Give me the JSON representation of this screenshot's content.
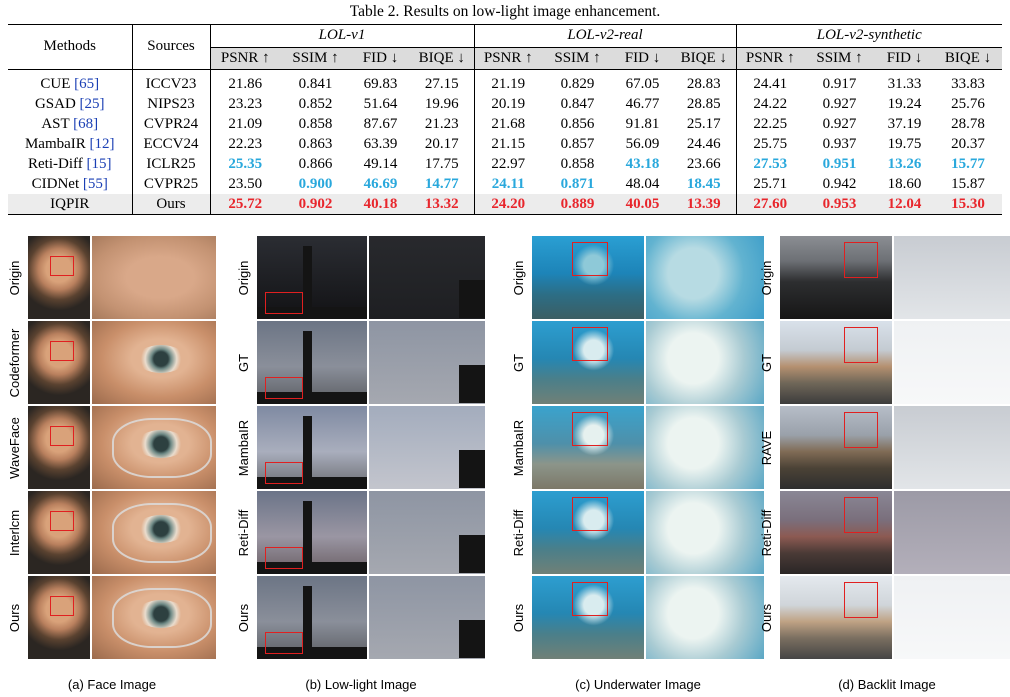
{
  "caption": "Table 2. Results on low-light image enhancement.",
  "table": {
    "col_methods": "Methods",
    "col_sources": "Sources",
    "groups": [
      "LOL-v1",
      "LOL-v2-real",
      "LOL-v2-synthetic"
    ],
    "metrics": [
      "PSNR ↑",
      "SSIM ↑",
      "FID ↓",
      "BIQE ↓"
    ],
    "rows": [
      {
        "method": "CUE",
        "ref": "[65]",
        "source": "ICCV23",
        "values": [
          "21.86",
          "0.841",
          "69.83",
          "27.15",
          "21.19",
          "0.829",
          "67.05",
          "28.83",
          "24.41",
          "0.917",
          "31.33",
          "33.83"
        ],
        "styles": [
          "",
          "",
          "",
          "",
          "",
          "",
          "",
          "",
          "",
          "",
          "",
          ""
        ]
      },
      {
        "method": "GSAD",
        "ref": "[25]",
        "source": "NIPS23",
        "values": [
          "23.23",
          "0.852",
          "51.64",
          "19.96",
          "20.19",
          "0.847",
          "46.77",
          "28.85",
          "24.22",
          "0.927",
          "19.24",
          "25.76"
        ],
        "styles": [
          "",
          "",
          "",
          "",
          "",
          "",
          "",
          "",
          "",
          "",
          "",
          ""
        ]
      },
      {
        "method": "AST",
        "ref": "[68]",
        "source": "CVPR24",
        "values": [
          "21.09",
          "0.858",
          "87.67",
          "21.23",
          "21.68",
          "0.856",
          "91.81",
          "25.17",
          "22.25",
          "0.927",
          "37.19",
          "28.78"
        ],
        "styles": [
          "",
          "",
          "",
          "",
          "",
          "",
          "",
          "",
          "",
          "",
          "",
          ""
        ]
      },
      {
        "method": "MambaIR",
        "ref": "[12]",
        "source": "ECCV24",
        "values": [
          "22.23",
          "0.863",
          "63.39",
          "20.17",
          "21.15",
          "0.857",
          "56.09",
          "24.46",
          "25.75",
          "0.937",
          "19.75",
          "20.37"
        ],
        "styles": [
          "",
          "",
          "",
          "",
          "",
          "",
          "",
          "",
          "",
          "",
          "",
          ""
        ]
      },
      {
        "method": "Reti-Diff",
        "ref": "[15]",
        "source": "ICLR25",
        "values": [
          "25.35",
          "0.866",
          "49.14",
          "17.75",
          "22.97",
          "0.858",
          "43.18",
          "23.66",
          "27.53",
          "0.951",
          "13.26",
          "15.77"
        ],
        "styles": [
          "blue",
          "",
          "",
          "",
          "",
          "",
          "blue",
          "",
          "blue",
          "blue",
          "blue",
          "blue"
        ]
      },
      {
        "method": "CIDNet",
        "ref": "[55]",
        "source": "CVPR25",
        "values": [
          "23.50",
          "0.900",
          "46.69",
          "14.77",
          "24.11",
          "0.871",
          "48.04",
          "18.45",
          "25.71",
          "0.942",
          "18.60",
          "15.87"
        ],
        "styles": [
          "",
          "blue",
          "blue",
          "blue",
          "blue",
          "blue",
          "",
          "blue",
          "",
          "",
          "",
          ""
        ]
      },
      {
        "method": "IQPIR",
        "ref": "",
        "source": "Ours",
        "values": [
          "25.72",
          "0.902",
          "40.18",
          "13.32",
          "24.20",
          "0.889",
          "40.05",
          "13.39",
          "27.60",
          "0.953",
          "12.04",
          "15.30"
        ],
        "styles": [
          "red",
          "red",
          "red",
          "red",
          "red",
          "red",
          "red",
          "red",
          "red",
          "red",
          "red",
          "red"
        ]
      }
    ]
  },
  "figure": {
    "panels": [
      {
        "caption": "(a) Face Image",
        "rows": [
          "Origin",
          "Codeformer",
          "WaveFace",
          "Interlcm",
          "Ours"
        ]
      },
      {
        "caption": "(b) Low-light Image",
        "rows": [
          "Origin",
          "GT",
          "MambaIR",
          "Reti-Diff",
          "Ours"
        ]
      },
      {
        "caption": "(c) Underwater Image",
        "rows": [
          "Origin",
          "GT",
          "MambaIR",
          "Reti-Diff",
          "Ours"
        ]
      },
      {
        "caption": "(d) Backlit Image",
        "rows": [
          "Origin",
          "GT",
          "RAVE",
          "Reti-Diff",
          "Ours"
        ]
      }
    ]
  }
}
